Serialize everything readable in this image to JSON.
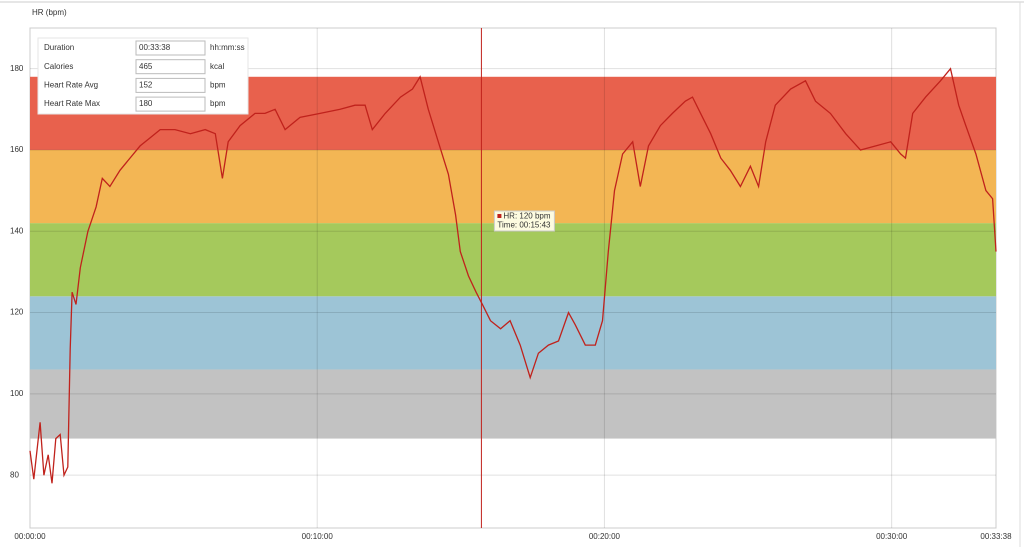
{
  "chart_data": {
    "type": "line",
    "title": "HR (bpm)",
    "x": [
      0,
      8,
      21,
      29,
      38,
      46,
      54,
      63,
      71,
      79,
      84,
      88,
      96,
      105,
      121,
      138,
      151,
      167,
      188,
      209,
      230,
      251,
      272,
      303,
      335,
      366,
      387,
      402,
      414,
      439,
      470,
      491,
      512,
      533,
      564,
      606,
      648,
      679,
      700,
      715,
      742,
      774,
      799,
      815,
      832,
      853,
      874,
      889,
      899,
      916,
      932,
      945,
      962,
      983,
      1003,
      1024,
      1045,
      1062,
      1083,
      1104,
      1125,
      1139,
      1160,
      1181,
      1196,
      1208,
      1221,
      1238,
      1259,
      1275,
      1292,
      1317,
      1342,
      1369,
      1384,
      1401,
      1422,
      1443,
      1463,
      1484,
      1505,
      1522,
      1537,
      1557,
      1589,
      1620,
      1641,
      1672,
      1704,
      1735,
      1767,
      1798,
      1819,
      1829,
      1844,
      1871,
      1902,
      1923,
      1940,
      1955,
      1976,
      1997,
      2011,
      2018
    ],
    "series": [
      {
        "name": "HR",
        "color": "#c0221c",
        "values": [
          86,
          79,
          93,
          80,
          85,
          78,
          89,
          90,
          80,
          82,
          111,
          125,
          122,
          131,
          140,
          146,
          153,
          151,
          155,
          158,
          161,
          163,
          165,
          165,
          164,
          165,
          164,
          153,
          162,
          166,
          169,
          169,
          170,
          165,
          168,
          169,
          170,
          171,
          171,
          165,
          169,
          173,
          175,
          178,
          170,
          162,
          154,
          144,
          135,
          129,
          125,
          122,
          118,
          116,
          118,
          112,
          104,
          110,
          112,
          113,
          120,
          117,
          112,
          112,
          118,
          135,
          150,
          159,
          162,
          151,
          161,
          166,
          169,
          172,
          173,
          169,
          164,
          158,
          155,
          151,
          156,
          151,
          162,
          171,
          175,
          177,
          172,
          169,
          164,
          160,
          161,
          162,
          159,
          158,
          169,
          173,
          177,
          180,
          171,
          166,
          159,
          150,
          148,
          135
        ]
      }
    ],
    "xlim": [
      0,
      2018
    ],
    "xticks": [
      {
        "value": 0,
        "label": "00:00:00"
      },
      {
        "value": 600,
        "label": "00:10:00"
      },
      {
        "value": 1200,
        "label": "00:20:00"
      },
      {
        "value": 1800,
        "label": "00:30:00"
      },
      {
        "value": 2018,
        "label": "00:33:38"
      }
    ],
    "ylim": [
      67,
      190
    ],
    "yticks": [
      80,
      100,
      120,
      140,
      160,
      180
    ],
    "grid": true,
    "zones": [
      {
        "from": 89,
        "to": 106,
        "color": "#c2c2c2"
      },
      {
        "from": 106,
        "to": 124,
        "color": "#9dc4d6"
      },
      {
        "from": 124,
        "to": 142,
        "color": "#a5c95c"
      },
      {
        "from": 142,
        "to": 160,
        "color": "#f3b654"
      },
      {
        "from": 160,
        "to": 178,
        "color": "#e8614d"
      }
    ],
    "cursor": {
      "x": 943,
      "hr_label": "HR: 120 bpm",
      "time_label": "Time: 00:15:43"
    },
    "summary": [
      {
        "label": "Duration",
        "value": "00:33:38",
        "unit": "hh:mm:ss"
      },
      {
        "label": "Calories",
        "value": "465",
        "unit": "kcal"
      },
      {
        "label": "Heart Rate Avg",
        "value": "152",
        "unit": "bpm"
      },
      {
        "label": "Heart Rate Max",
        "value": "180",
        "unit": "bpm"
      }
    ]
  }
}
